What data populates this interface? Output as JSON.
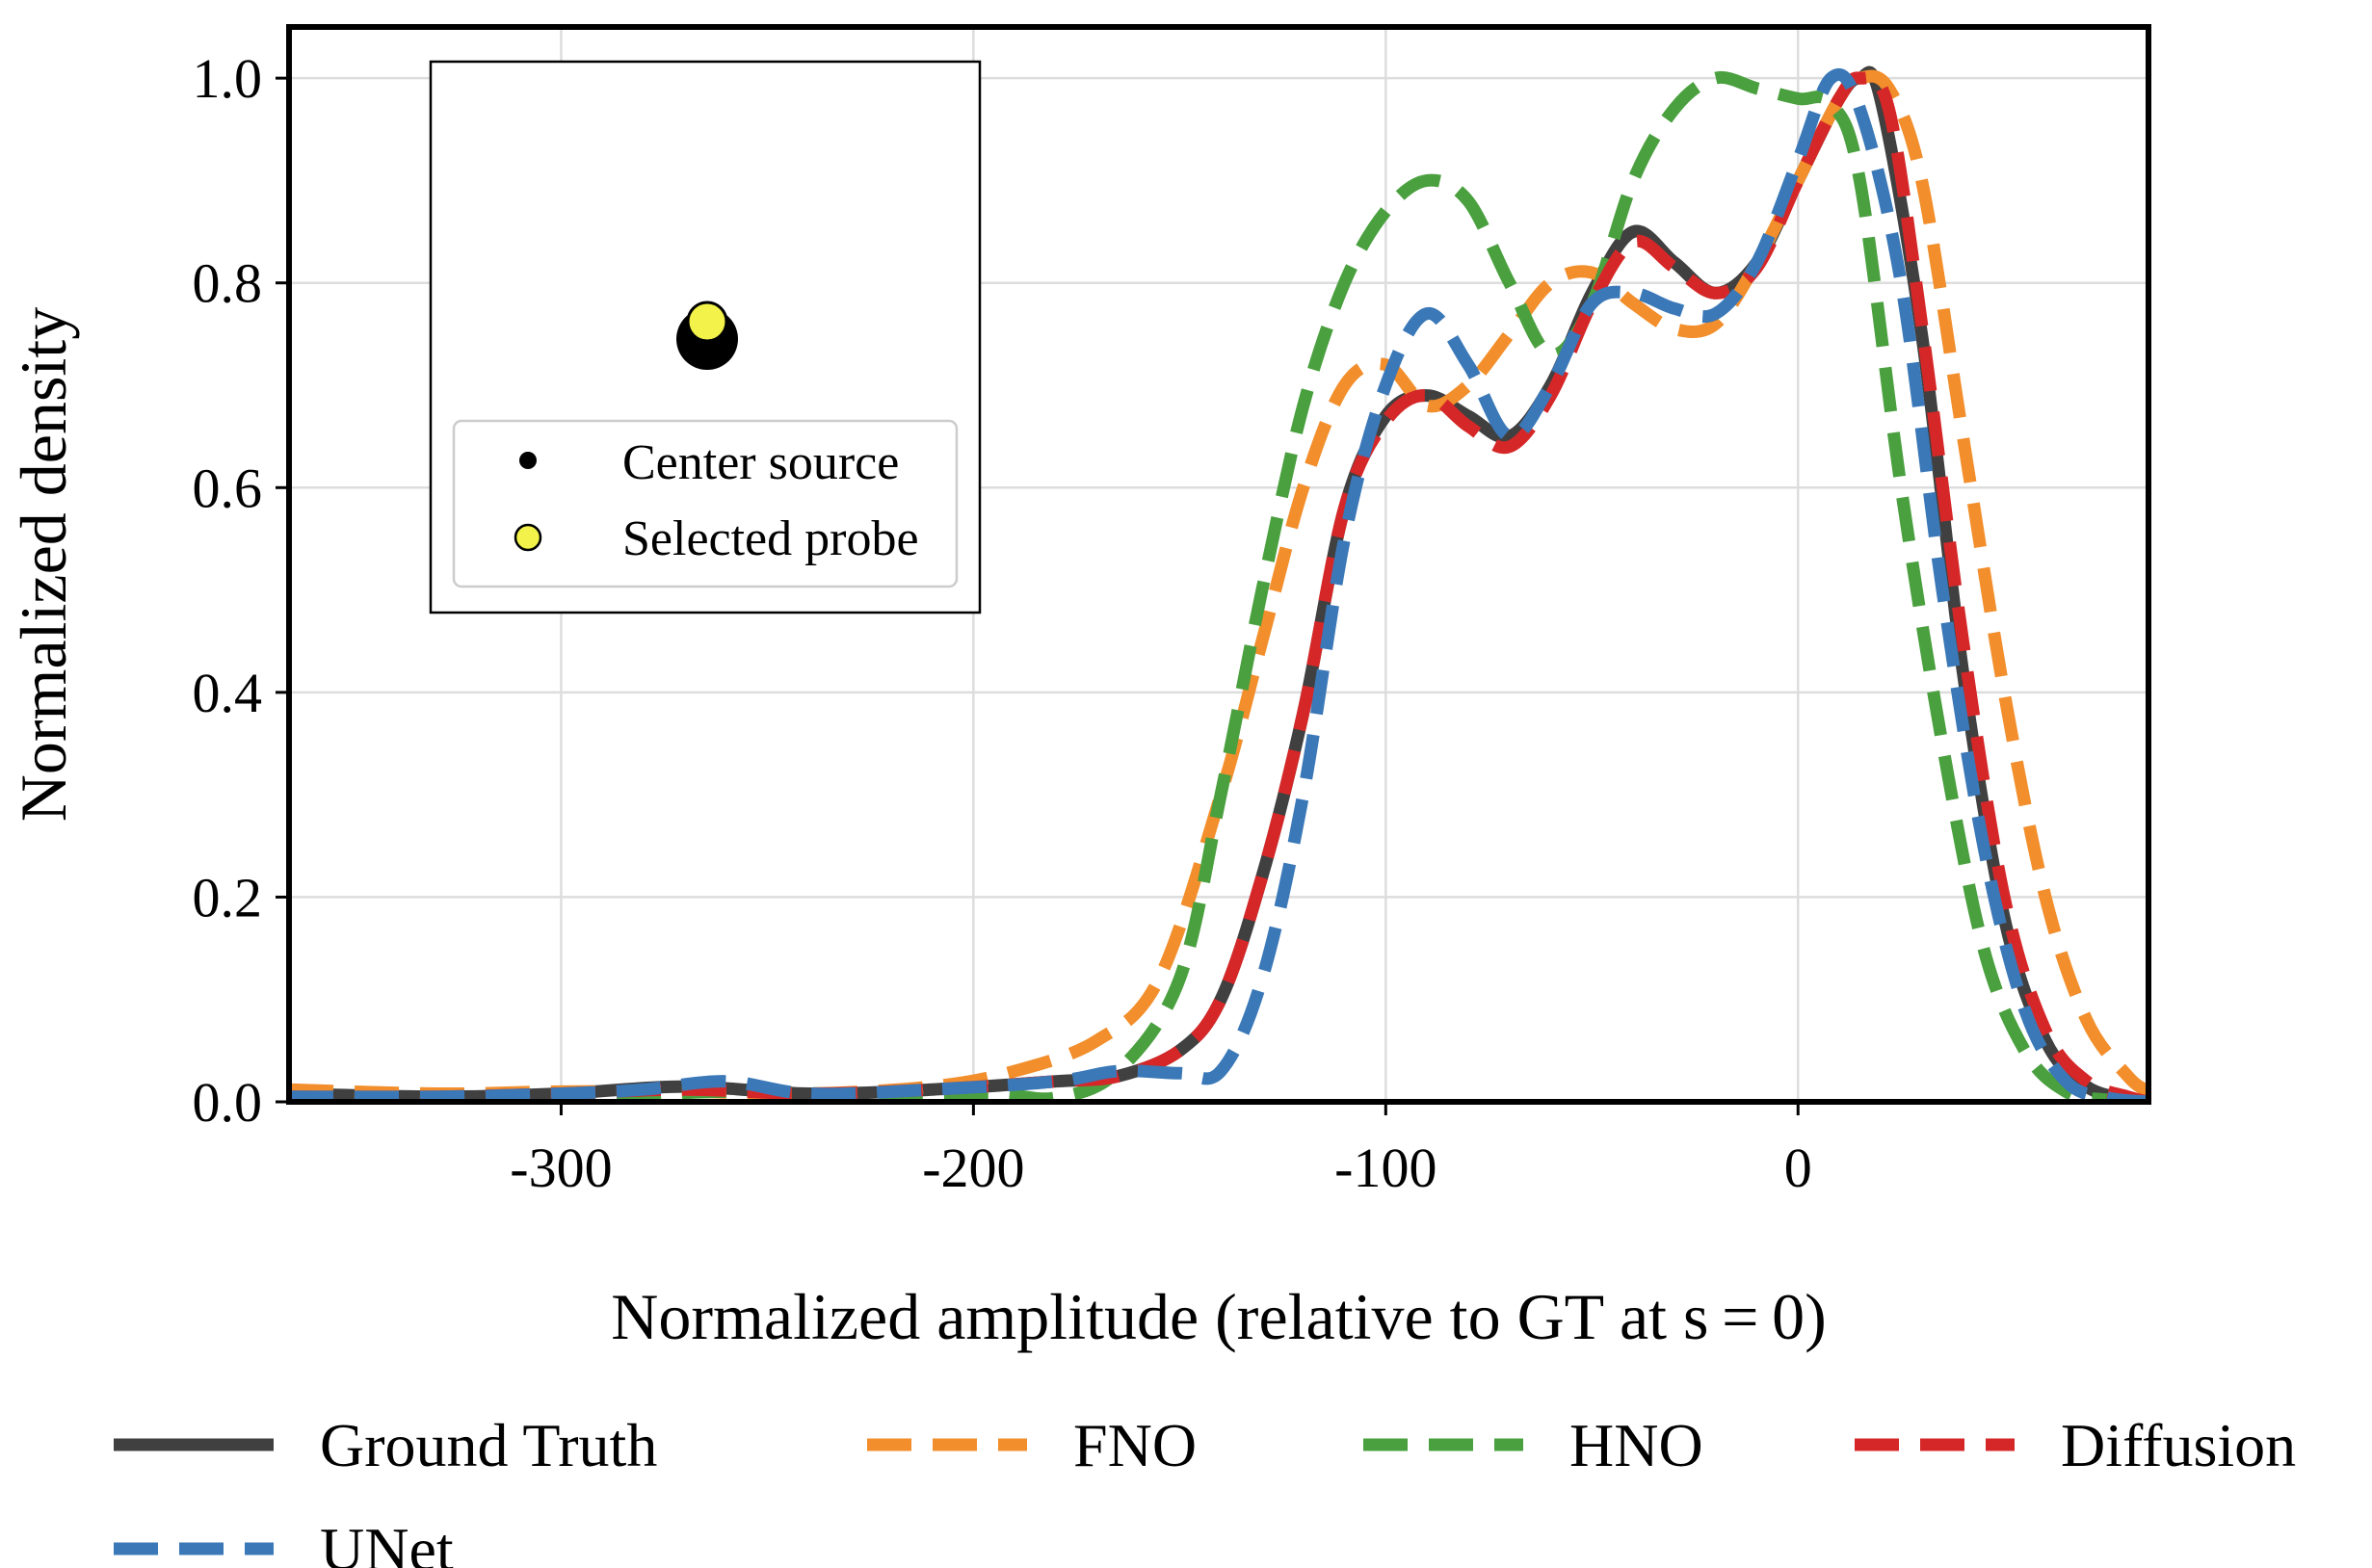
{
  "chart_data": {
    "type": "line",
    "xlabel": "Normalized amplitude (relative to GT at s = 0)",
    "ylabel": "Normalized density",
    "xlim": [
      -366,
      85
    ],
    "ylim": [
      0,
      1.05
    ],
    "x_ticks": [
      {
        "value": -300,
        "label": "-300"
      },
      {
        "value": -200,
        "label": "-200"
      },
      {
        "value": -100,
        "label": "-100"
      },
      {
        "value": 0,
        "label": "0"
      }
    ],
    "y_ticks": [
      {
        "value": 0.0,
        "label": "0.0"
      },
      {
        "value": 0.2,
        "label": "0.2"
      },
      {
        "value": 0.4,
        "label": "0.4"
      },
      {
        "value": 0.6,
        "label": "0.6"
      },
      {
        "value": 0.8,
        "label": "0.8"
      },
      {
        "value": 1.0,
        "label": "1.0"
      }
    ],
    "grid": true,
    "legend_placement": "bottom",
    "series": [
      {
        "name": "Ground Truth",
        "color": "#404040",
        "dashed": false,
        "points": [
          [
            -366,
            0.008
          ],
          [
            -330,
            0.005
          ],
          [
            -300,
            0.008
          ],
          [
            -270,
            0.015
          ],
          [
            -240,
            0.008
          ],
          [
            -210,
            0.012
          ],
          [
            -180,
            0.02
          ],
          [
            -165,
            0.025
          ],
          [
            -150,
            0.05
          ],
          [
            -140,
            0.1
          ],
          [
            -130,
            0.22
          ],
          [
            -120,
            0.38
          ],
          [
            -110,
            0.58
          ],
          [
            -100,
            0.67
          ],
          [
            -90,
            0.69
          ],
          [
            -80,
            0.67
          ],
          [
            -70,
            0.65
          ],
          [
            -60,
            0.7
          ],
          [
            -50,
            0.79
          ],
          [
            -40,
            0.85
          ],
          [
            -30,
            0.82
          ],
          [
            -20,
            0.79
          ],
          [
            -10,
            0.82
          ],
          [
            0,
            0.9
          ],
          [
            10,
            0.98
          ],
          [
            15,
            1.0
          ],
          [
            20,
            0.98
          ],
          [
            30,
            0.75
          ],
          [
            40,
            0.42
          ],
          [
            50,
            0.18
          ],
          [
            60,
            0.06
          ],
          [
            70,
            0.015
          ],
          [
            80,
            0.003
          ],
          [
            85,
            0.0
          ]
        ]
      },
      {
        "name": "FNO",
        "color": "#f28e2b",
        "dashed": true,
        "points": [
          [
            -366,
            0.012
          ],
          [
            -330,
            0.008
          ],
          [
            -300,
            0.01
          ],
          [
            -270,
            0.01
          ],
          [
            -240,
            0.008
          ],
          [
            -210,
            0.015
          ],
          [
            -190,
            0.03
          ],
          [
            -170,
            0.06
          ],
          [
            -155,
            0.12
          ],
          [
            -140,
            0.3
          ],
          [
            -130,
            0.45
          ],
          [
            -120,
            0.6
          ],
          [
            -110,
            0.7
          ],
          [
            -100,
            0.72
          ],
          [
            -90,
            0.68
          ],
          [
            -80,
            0.7
          ],
          [
            -70,
            0.75
          ],
          [
            -60,
            0.8
          ],
          [
            -50,
            0.81
          ],
          [
            -40,
            0.78
          ],
          [
            -30,
            0.755
          ],
          [
            -20,
            0.76
          ],
          [
            -10,
            0.82
          ],
          [
            0,
            0.9
          ],
          [
            10,
            0.98
          ],
          [
            15,
            1.0
          ],
          [
            22,
            0.99
          ],
          [
            30,
            0.9
          ],
          [
            40,
            0.65
          ],
          [
            50,
            0.4
          ],
          [
            60,
            0.2
          ],
          [
            70,
            0.08
          ],
          [
            80,
            0.025
          ],
          [
            85,
            0.01
          ]
        ]
      },
      {
        "name": "HNO",
        "color": "#4aa03f",
        "dashed": true,
        "points": [
          [
            -366,
            0.005
          ],
          [
            -300,
            0.003
          ],
          [
            -260,
            0.01
          ],
          [
            -220,
            0.006
          ],
          [
            -195,
            0.008
          ],
          [
            -180,
            0.004
          ],
          [
            -165,
            0.03
          ],
          [
            -150,
            0.12
          ],
          [
            -140,
            0.3
          ],
          [
            -130,
            0.5
          ],
          [
            -120,
            0.68
          ],
          [
            -110,
            0.8
          ],
          [
            -100,
            0.87
          ],
          [
            -90,
            0.9
          ],
          [
            -80,
            0.88
          ],
          [
            -70,
            0.8
          ],
          [
            -60,
            0.73
          ],
          [
            -50,
            0.78
          ],
          [
            -40,
            0.9
          ],
          [
            -30,
            0.97
          ],
          [
            -20,
            1.0
          ],
          [
            -10,
            0.99
          ],
          [
            0,
            0.98
          ],
          [
            8,
            0.975
          ],
          [
            15,
            0.9
          ],
          [
            25,
            0.6
          ],
          [
            35,
            0.35
          ],
          [
            45,
            0.15
          ],
          [
            55,
            0.05
          ],
          [
            65,
            0.01
          ],
          [
            75,
            0.002
          ],
          [
            85,
            0.0
          ]
        ]
      },
      {
        "name": "Diffusion",
        "color": "#d62728",
        "dashed": true,
        "points": [
          [
            -366,
            0.005
          ],
          [
            -330,
            0.005
          ],
          [
            -300,
            0.008
          ],
          [
            -270,
            0.012
          ],
          [
            -240,
            0.008
          ],
          [
            -210,
            0.012
          ],
          [
            -180,
            0.02
          ],
          [
            -165,
            0.025
          ],
          [
            -150,
            0.05
          ],
          [
            -140,
            0.1
          ],
          [
            -130,
            0.22
          ],
          [
            -120,
            0.38
          ],
          [
            -110,
            0.58
          ],
          [
            -100,
            0.665
          ],
          [
            -90,
            0.69
          ],
          [
            -80,
            0.66
          ],
          [
            -70,
            0.64
          ],
          [
            -60,
            0.69
          ],
          [
            -50,
            0.78
          ],
          [
            -40,
            0.84
          ],
          [
            -30,
            0.815
          ],
          [
            -20,
            0.79
          ],
          [
            -10,
            0.815
          ],
          [
            0,
            0.9
          ],
          [
            10,
            0.98
          ],
          [
            15,
            1.0
          ],
          [
            22,
            0.97
          ],
          [
            30,
            0.76
          ],
          [
            40,
            0.45
          ],
          [
            50,
            0.2
          ],
          [
            60,
            0.07
          ],
          [
            70,
            0.02
          ],
          [
            80,
            0.005
          ],
          [
            85,
            0.0
          ]
        ]
      },
      {
        "name": "UNet",
        "color": "#3b78b7",
        "dashed": true,
        "points": [
          [
            -366,
            0.005
          ],
          [
            -330,
            0.005
          ],
          [
            -300,
            0.008
          ],
          [
            -280,
            0.012
          ],
          [
            -260,
            0.02
          ],
          [
            -240,
            0.008
          ],
          [
            -210,
            0.012
          ],
          [
            -180,
            0.02
          ],
          [
            -165,
            0.03
          ],
          [
            -150,
            0.028
          ],
          [
            -140,
            0.03
          ],
          [
            -130,
            0.12
          ],
          [
            -120,
            0.3
          ],
          [
            -110,
            0.55
          ],
          [
            -100,
            0.7
          ],
          [
            -90,
            0.77
          ],
          [
            -80,
            0.72
          ],
          [
            -70,
            0.65
          ],
          [
            -60,
            0.7
          ],
          [
            -50,
            0.78
          ],
          [
            -40,
            0.79
          ],
          [
            -30,
            0.775
          ],
          [
            -20,
            0.77
          ],
          [
            -10,
            0.82
          ],
          [
            0,
            0.92
          ],
          [
            8,
            1.0
          ],
          [
            15,
            0.97
          ],
          [
            25,
            0.8
          ],
          [
            35,
            0.5
          ],
          [
            45,
            0.25
          ],
          [
            55,
            0.09
          ],
          [
            65,
            0.02
          ],
          [
            75,
            0.004
          ],
          [
            85,
            0.0
          ]
        ]
      }
    ],
    "inset": {
      "markers": [
        {
          "name": "center-source-marker",
          "color": "#000000"
        },
        {
          "name": "selected-probe-marker",
          "color": "#f2f24a"
        }
      ],
      "legend": [
        {
          "label": "Center source",
          "color": "#000000"
        },
        {
          "label": "Selected probe",
          "color": "#f2f24a"
        }
      ]
    },
    "legend": [
      {
        "name": "Ground Truth",
        "color": "#404040",
        "dashed": false
      },
      {
        "name": "FNO",
        "color": "#f28e2b",
        "dashed": true
      },
      {
        "name": "HNO",
        "color": "#4aa03f",
        "dashed": true
      },
      {
        "name": "Diffusion",
        "color": "#d62728",
        "dashed": true
      },
      {
        "name": "UNet",
        "color": "#3b78b7",
        "dashed": true
      }
    ]
  }
}
